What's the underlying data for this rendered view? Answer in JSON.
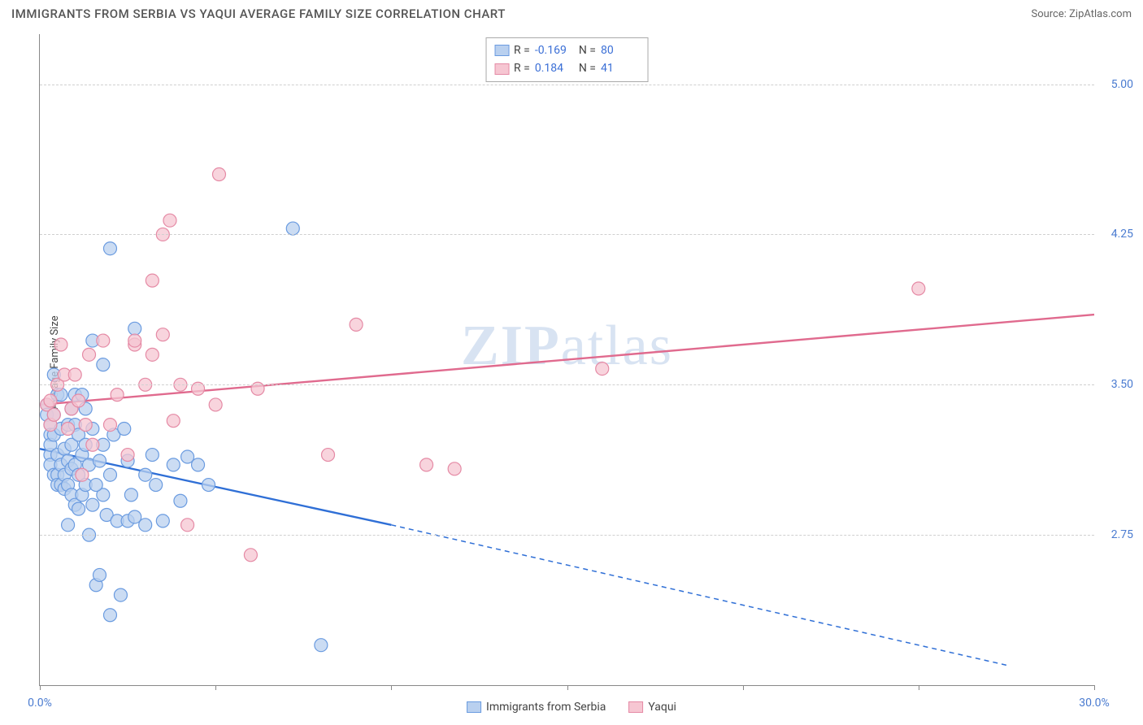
{
  "header": {
    "title": "IMMIGRANTS FROM SERBIA VS YAQUI AVERAGE FAMILY SIZE CORRELATION CHART",
    "source_prefix": "Source: ",
    "source_name": "ZipAtlas.com"
  },
  "watermark": {
    "part1": "ZIP",
    "part2": "atlas"
  },
  "chart": {
    "type": "scatter-with-trend",
    "y_axis_label": "Average Family Size",
    "xlim": [
      0.0,
      30.0
    ],
    "ylim": [
      2.0,
      5.25
    ],
    "x_tick_positions": [
      0,
      5,
      10,
      15,
      20,
      25,
      30
    ],
    "x_tick_labels_shown": {
      "0": "0.0%",
      "30": "30.0%"
    },
    "y_ticks": [
      2.75,
      3.5,
      4.25,
      5.0
    ],
    "y_tick_labels": [
      "2.75",
      "3.50",
      "4.25",
      "5.00"
    ],
    "grid_color": "#d0d0d0",
    "axis_color": "#888888",
    "background_color": "#ffffff",
    "marker_radius": 8,
    "marker_stroke_width": 1.2,
    "trend_line_width": 2.4
  },
  "series": {
    "blue": {
      "label": "Immigrants from Serbia",
      "fill": "#b9d0ef",
      "stroke": "#6a9be0",
      "line_color": "#2f6fd6",
      "R": "-0.169",
      "N": "80",
      "trend": {
        "x1": 0.0,
        "y1": 3.18,
        "x_solid_end": 10.0,
        "y_solid_end": 2.8,
        "x2": 27.5,
        "y2": 2.1
      },
      "points": [
        [
          0.2,
          3.4
        ],
        [
          0.2,
          3.35
        ],
        [
          0.3,
          3.3
        ],
        [
          0.3,
          3.25
        ],
        [
          0.3,
          3.15
        ],
        [
          0.3,
          3.1
        ],
        [
          0.4,
          3.05
        ],
        [
          0.3,
          3.2
        ],
        [
          0.4,
          3.35
        ],
        [
          0.4,
          3.25
        ],
        [
          0.5,
          3.15
        ],
        [
          0.5,
          3.05
        ],
        [
          0.5,
          3.0
        ],
        [
          0.6,
          3.28
        ],
        [
          0.6,
          3.1
        ],
        [
          0.6,
          3.0
        ],
        [
          0.7,
          3.18
        ],
        [
          0.7,
          3.05
        ],
        [
          0.7,
          2.98
        ],
        [
          0.8,
          3.3
        ],
        [
          0.8,
          3.12
        ],
        [
          0.8,
          3.0
        ],
        [
          0.9,
          3.2
        ],
        [
          0.9,
          3.08
        ],
        [
          0.9,
          2.95
        ],
        [
          1.0,
          3.3
        ],
        [
          1.0,
          3.1
        ],
        [
          1.0,
          2.9
        ],
        [
          1.1,
          3.25
        ],
        [
          1.1,
          3.05
        ],
        [
          1.2,
          3.15
        ],
        [
          1.2,
          2.95
        ],
        [
          1.3,
          3.0
        ],
        [
          1.3,
          3.2
        ],
        [
          1.4,
          3.1
        ],
        [
          1.5,
          3.72
        ],
        [
          1.5,
          2.9
        ],
        [
          1.6,
          2.5
        ],
        [
          1.7,
          2.55
        ],
        [
          1.8,
          3.6
        ],
        [
          1.8,
          2.95
        ],
        [
          1.9,
          2.85
        ],
        [
          2.0,
          4.18
        ],
        [
          2.0,
          3.05
        ],
        [
          2.0,
          2.35
        ],
        [
          2.2,
          2.82
        ],
        [
          2.3,
          2.45
        ],
        [
          2.5,
          3.12
        ],
        [
          2.5,
          2.82
        ],
        [
          2.7,
          3.78
        ],
        [
          2.7,
          2.84
        ],
        [
          3.0,
          3.05
        ],
        [
          3.0,
          2.8
        ],
        [
          3.3,
          3.0
        ],
        [
          3.5,
          2.82
        ],
        [
          3.8,
          3.1
        ],
        [
          4.2,
          3.14
        ],
        [
          4.5,
          3.1
        ],
        [
          4.8,
          3.0
        ],
        [
          7.2,
          4.28
        ],
        [
          8.0,
          2.2
        ],
        [
          0.5,
          3.45
        ],
        [
          0.4,
          3.55
        ],
        [
          0.6,
          3.45
        ],
        [
          1.0,
          3.45
        ],
        [
          1.2,
          3.45
        ],
        [
          0.8,
          2.8
        ],
        [
          1.1,
          2.88
        ],
        [
          1.4,
          2.75
        ],
        [
          1.6,
          3.0
        ],
        [
          1.8,
          3.2
        ],
        [
          2.1,
          3.25
        ],
        [
          2.4,
          3.28
        ],
        [
          0.9,
          3.38
        ],
        [
          1.3,
          3.38
        ],
        [
          1.5,
          3.28
        ],
        [
          1.7,
          3.12
        ],
        [
          2.6,
          2.95
        ],
        [
          3.2,
          3.15
        ],
        [
          4.0,
          2.92
        ]
      ]
    },
    "pink": {
      "label": "Yaqui",
      "fill": "#f6c6d2",
      "stroke": "#e58aa5",
      "line_color": "#e06a8e",
      "R": "0.184",
      "N": "41",
      "trend": {
        "x1": 0.0,
        "y1": 3.4,
        "x2": 30.0,
        "y2": 3.85
      },
      "points": [
        [
          0.2,
          3.4
        ],
        [
          0.3,
          3.42
        ],
        [
          0.3,
          3.3
        ],
        [
          0.4,
          3.35
        ],
        [
          0.5,
          3.5
        ],
        [
          0.6,
          3.7
        ],
        [
          0.7,
          3.55
        ],
        [
          0.8,
          3.28
        ],
        [
          0.9,
          3.38
        ],
        [
          1.0,
          3.55
        ],
        [
          1.1,
          3.42
        ],
        [
          1.2,
          3.05
        ],
        [
          1.3,
          3.3
        ],
        [
          1.4,
          3.65
        ],
        [
          1.5,
          3.2
        ],
        [
          1.8,
          3.72
        ],
        [
          2.0,
          3.3
        ],
        [
          2.2,
          3.45
        ],
        [
          2.5,
          3.15
        ],
        [
          2.7,
          3.7
        ],
        [
          2.7,
          3.72
        ],
        [
          3.0,
          3.5
        ],
        [
          3.2,
          3.65
        ],
        [
          3.2,
          4.02
        ],
        [
          3.5,
          3.75
        ],
        [
          3.5,
          4.25
        ],
        [
          3.7,
          4.32
        ],
        [
          4.0,
          3.5
        ],
        [
          4.2,
          2.8
        ],
        [
          4.5,
          3.48
        ],
        [
          5.0,
          3.4
        ],
        [
          5.1,
          4.55
        ],
        [
          6.0,
          2.65
        ],
        [
          6.2,
          3.48
        ],
        [
          8.2,
          3.15
        ],
        [
          9.0,
          3.8
        ],
        [
          11.0,
          3.1
        ],
        [
          11.8,
          3.08
        ],
        [
          16.0,
          3.58
        ],
        [
          25.0,
          3.98
        ],
        [
          3.8,
          3.32
        ]
      ]
    }
  },
  "legend_bottom": [
    {
      "series": "blue"
    },
    {
      "series": "pink"
    }
  ]
}
